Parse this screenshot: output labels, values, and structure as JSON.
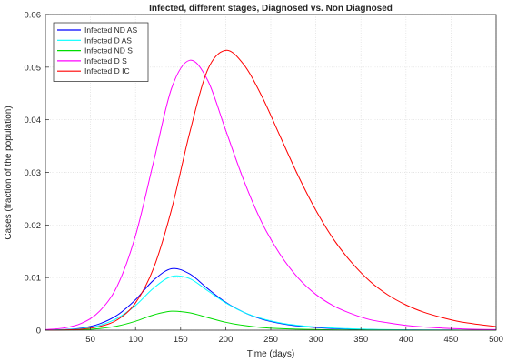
{
  "chart_data": {
    "type": "line",
    "title": "Infected, different stages, Diagnosed vs. Non Diagnosed",
    "xlabel": "Time (days)",
    "ylabel": "Cases (fraction of the population)",
    "xlim": [
      0,
      500
    ],
    "ylim": [
      0,
      0.06
    ],
    "xticks": [
      50,
      100,
      150,
      200,
      250,
      300,
      350,
      400,
      450,
      500
    ],
    "yticks": [
      0,
      0.01,
      0.02,
      0.03,
      0.04,
      0.05,
      0.06
    ],
    "ytick_labels": [
      "0",
      "0.01",
      "0.02",
      "0.03",
      "0.04",
      "0.05",
      "0.06"
    ],
    "grid": true,
    "legend_position": "top-left",
    "x": [
      0,
      20,
      40,
      60,
      80,
      100,
      120,
      140,
      160,
      180,
      200,
      220,
      240,
      260,
      280,
      300,
      320,
      340,
      360,
      380,
      400,
      420,
      440,
      460,
      480,
      500
    ],
    "series": [
      {
        "name": "Infected ND AS",
        "color": "#0000ff",
        "values": [
          2e-05,
          0.0001,
          0.0004,
          0.0012,
          0.0029,
          0.0058,
          0.0095,
          0.0117,
          0.0107,
          0.0079,
          0.0053,
          0.0034,
          0.0021,
          0.0013,
          0.0008,
          0.0005,
          0.0003,
          0.0002,
          0.00012,
          8e-05,
          5e-05,
          3e-05,
          2e-05,
          1e-05,
          1e-05,
          0.0
        ]
      },
      {
        "name": "Infected D AS",
        "color": "#00ffff",
        "values": [
          1e-05,
          8e-05,
          0.0003,
          0.0009,
          0.0023,
          0.0047,
          0.008,
          0.0102,
          0.0098,
          0.0075,
          0.0052,
          0.0034,
          0.0022,
          0.0014,
          0.0009,
          0.0006,
          0.0004,
          0.00025,
          0.00016,
          0.0001,
          7e-05,
          4e-05,
          3e-05,
          2e-05,
          1e-05,
          1e-05
        ]
      },
      {
        "name": "Infected ND S",
        "color": "#00dd00",
        "values": [
          0.0,
          3e-05,
          0.0001,
          0.0003,
          0.0008,
          0.0017,
          0.0029,
          0.0036,
          0.0033,
          0.0024,
          0.0015,
          0.0009,
          0.0005,
          0.0003,
          0.0002,
          0.00012,
          7e-05,
          4e-05,
          3e-05,
          2e-05,
          1e-05,
          1e-05,
          0.0,
          0.0,
          0.0,
          0.0
        ]
      },
      {
        "name": "Infected D S",
        "color": "#ff00ff",
        "values": [
          0.0001,
          0.0004,
          0.0013,
          0.0036,
          0.0085,
          0.018,
          0.032,
          0.046,
          0.0513,
          0.0475,
          0.038,
          0.0285,
          0.0205,
          0.0145,
          0.01,
          0.0068,
          0.0046,
          0.0031,
          0.002,
          0.0014,
          0.0009,
          0.0006,
          0.0004,
          0.00025,
          0.00016,
          0.0001
        ]
      },
      {
        "name": "Infected D IC",
        "color": "#ff0000",
        "values": [
          0.0,
          5e-05,
          0.0002,
          0.0007,
          0.002,
          0.0052,
          0.0118,
          0.023,
          0.0375,
          0.0495,
          0.0532,
          0.0505,
          0.0445,
          0.037,
          0.0295,
          0.0228,
          0.0172,
          0.0128,
          0.0093,
          0.0067,
          0.0048,
          0.0034,
          0.0024,
          0.0016,
          0.0011,
          0.0007
        ]
      }
    ]
  }
}
